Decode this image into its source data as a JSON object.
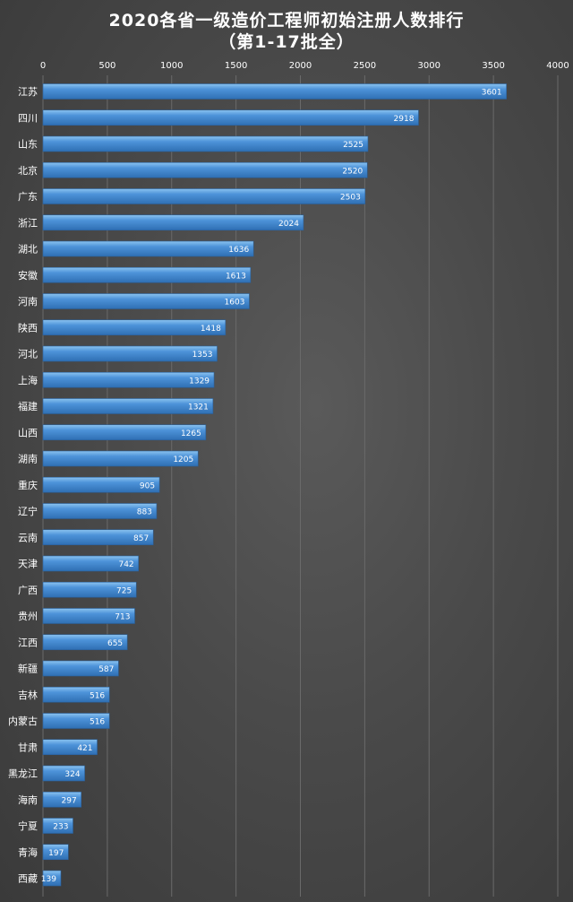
{
  "chart_data": {
    "type": "bar",
    "orientation": "horizontal",
    "title": "2020各省一级造价工程师初始注册人数排行",
    "subtitle": "（第1-17批全）",
    "xlim": [
      0,
      4000
    ],
    "x_ticks": [
      "0",
      "500",
      "1000",
      "1500",
      "2000",
      "2500",
      "3000",
      "3500",
      "4000"
    ],
    "x_axis_position": "top",
    "grid": true,
    "colors": {
      "bar_top": "#8bc3f0",
      "bar_main": "#4d93d9",
      "bar_bottom": "#2f6fb3",
      "gridline": "#6a6a6a",
      "text": "#ffffff"
    },
    "categories": [
      "江苏",
      "四川",
      "山东",
      "北京",
      "广东",
      "浙江",
      "湖北",
      "安徽",
      "河南",
      "陕西",
      "河北",
      "上海",
      "福建",
      "山西",
      "湖南",
      "重庆",
      "辽宁",
      "云南",
      "天津",
      "广西",
      "贵州",
      "江西",
      "新疆",
      "吉林",
      "内蒙古",
      "甘肃",
      "黑龙江",
      "海南",
      "宁夏",
      "青海",
      "西藏"
    ],
    "values": [
      3601,
      2918,
      2525,
      2520,
      2503,
      2024,
      1636,
      1613,
      1603,
      1418,
      1353,
      1329,
      1321,
      1265,
      1205,
      905,
      883,
      857,
      742,
      725,
      713,
      655,
      587,
      516,
      516,
      421,
      324,
      297,
      233,
      197,
      139
    ],
    "data_labels": [
      "3601",
      "2918",
      "2525",
      "2520",
      "2503",
      "2024",
      "1636",
      "1613",
      "1603",
      "1418",
      "1353",
      "1329",
      "1321",
      "1265",
      "1205",
      "905",
      "883",
      "857",
      "742",
      "725",
      "713",
      "655",
      "587",
      "516",
      "516",
      "421",
      "324",
      "297",
      "233",
      "197",
      "139"
    ]
  }
}
